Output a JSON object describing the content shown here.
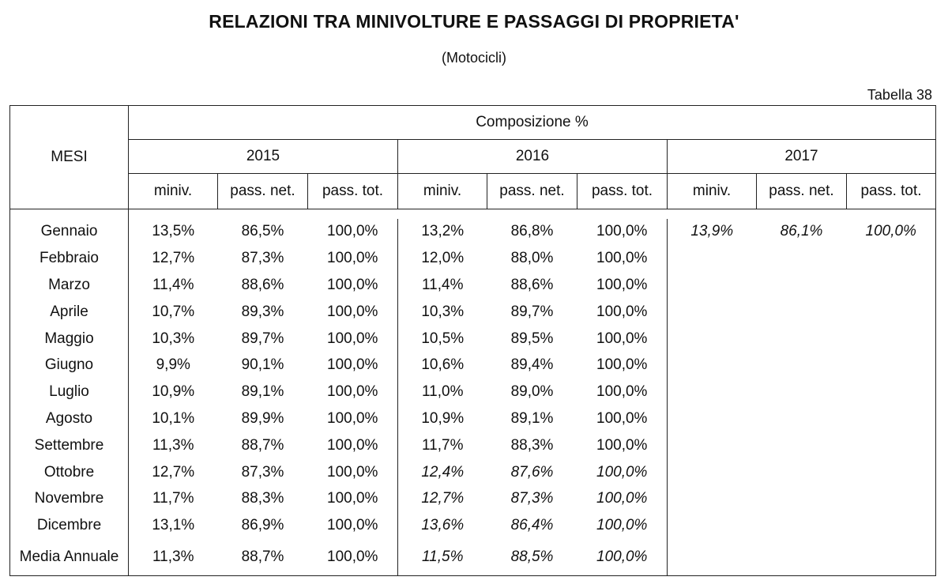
{
  "title": "RELAZIONI TRA MINIVOLTURE E PASSAGGI DI PROPRIETA'",
  "subtitle": "(Motocicli)",
  "table_ref": "Tabella 38",
  "header": {
    "mesi": "MESI",
    "group": "Composizione %",
    "years": [
      "2015",
      "2016",
      "2017"
    ],
    "subcols": [
      "miniv.",
      "pass. net.",
      "pass. tot."
    ]
  },
  "rows": [
    {
      "mese": "Gennaio",
      "y2015": [
        "13,5%",
        "86,5%",
        "100,0%"
      ],
      "y2016": [
        "13,2%",
        "86,8%",
        "100,0%"
      ],
      "y2017": [
        "13,9%",
        "86,1%",
        "100,0%"
      ]
    },
    {
      "mese": "Febbraio",
      "y2015": [
        "12,7%",
        "87,3%",
        "100,0%"
      ],
      "y2016": [
        "12,0%",
        "88,0%",
        "100,0%"
      ],
      "y2017": [
        "",
        "",
        ""
      ]
    },
    {
      "mese": "Marzo",
      "y2015": [
        "11,4%",
        "88,6%",
        "100,0%"
      ],
      "y2016": [
        "11,4%",
        "88,6%",
        "100,0%"
      ],
      "y2017": [
        "",
        "",
        ""
      ]
    },
    {
      "mese": "Aprile",
      "y2015": [
        "10,7%",
        "89,3%",
        "100,0%"
      ],
      "y2016": [
        "10,3%",
        "89,7%",
        "100,0%"
      ],
      "y2017": [
        "",
        "",
        ""
      ]
    },
    {
      "mese": "Maggio",
      "y2015": [
        "10,3%",
        "89,7%",
        "100,0%"
      ],
      "y2016": [
        "10,5%",
        "89,5%",
        "100,0%"
      ],
      "y2017": [
        "",
        "",
        ""
      ]
    },
    {
      "mese": "Giugno",
      "y2015": [
        "9,9%",
        "90,1%",
        "100,0%"
      ],
      "y2016": [
        "10,6%",
        "89,4%",
        "100,0%"
      ],
      "y2017": [
        "",
        "",
        ""
      ]
    },
    {
      "mese": "Luglio",
      "y2015": [
        "10,9%",
        "89,1%",
        "100,0%"
      ],
      "y2016": [
        "11,0%",
        "89,0%",
        "100,0%"
      ],
      "y2017": [
        "",
        "",
        ""
      ]
    },
    {
      "mese": "Agosto",
      "y2015": [
        "10,1%",
        "89,9%",
        "100,0%"
      ],
      "y2016": [
        "10,9%",
        "89,1%",
        "100,0%"
      ],
      "y2017": [
        "",
        "",
        ""
      ]
    },
    {
      "mese": "Settembre",
      "y2015": [
        "11,3%",
        "88,7%",
        "100,0%"
      ],
      "y2016": [
        "11,7%",
        "88,3%",
        "100,0%"
      ],
      "y2017": [
        "",
        "",
        ""
      ]
    },
    {
      "mese": "Ottobre",
      "y2015": [
        "12,7%",
        "87,3%",
        "100,0%"
      ],
      "y2016": [
        "12,4%",
        "87,6%",
        "100,0%"
      ],
      "y2017": [
        "",
        "",
        ""
      ]
    },
    {
      "mese": "Novembre",
      "y2015": [
        "11,7%",
        "88,3%",
        "100,0%"
      ],
      "y2016": [
        "12,7%",
        "87,3%",
        "100,0%"
      ],
      "y2017": [
        "",
        "",
        ""
      ]
    },
    {
      "mese": "Dicembre",
      "y2015": [
        "13,1%",
        "86,9%",
        "100,0%"
      ],
      "y2016": [
        "13,6%",
        "86,4%",
        "100,0%"
      ],
      "y2017": [
        "",
        "",
        ""
      ]
    }
  ],
  "media": {
    "mese": "Media Annuale",
    "y2015": [
      "11,3%",
      "88,7%",
      "100,0%"
    ],
    "y2016": [
      "11,5%",
      "88,5%",
      "100,0%"
    ],
    "y2017": [
      "",
      "",
      ""
    ]
  }
}
